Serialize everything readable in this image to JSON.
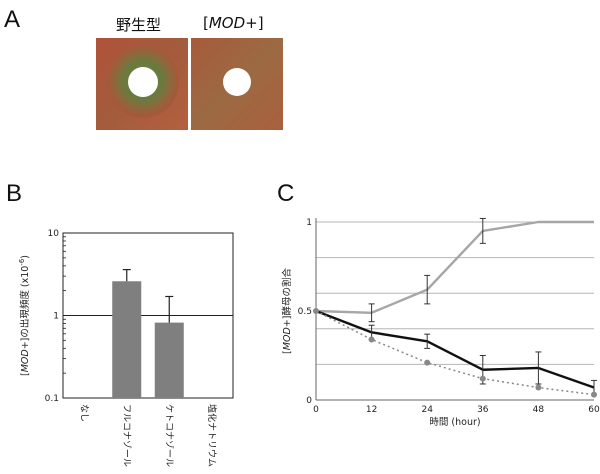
{
  "panel_a": {
    "letter": "A",
    "plates": [
      {
        "label": "野生型",
        "halo": true
      },
      {
        "label_pre": "[",
        "label_italic": "MOD",
        "label_post": "+]",
        "halo": false
      }
    ],
    "colors": {
      "agar": "#a8573a",
      "halo": "#6f7a3e",
      "disk": "#ffffff"
    }
  },
  "chart_data": [
    {
      "panel": "B",
      "type": "bar",
      "ylabel_italic": "MOD",
      "ylabel_rest": "+]の出現頻度 (x10",
      "ylabel_sup": "-6",
      "ylabel_pre": "[",
      "ylabel_end": ")",
      "yscale": "log",
      "ylim": [
        0.1,
        10
      ],
      "yticks": [
        "0.1",
        "1",
        "10"
      ],
      "categories": [
        "なし",
        "フルコナゾール",
        "ケトコナゾール",
        "塩化ナトリウム"
      ],
      "values": [
        null,
        2.6,
        0.82,
        null
      ],
      "err_upper": [
        null,
        3.6,
        1.7,
        null
      ],
      "reference_line": 1,
      "bar_color": "#7f7f7f"
    },
    {
      "panel": "C",
      "type": "line",
      "xlabel": "時間 (hour)",
      "ylabel_pre": "[",
      "ylabel_italic": "MOD",
      "ylabel_rest": "+]酵母の割合",
      "xlim": [
        0,
        60
      ],
      "ylim": [
        0,
        1
      ],
      "xticks": [
        "0",
        "12",
        "24",
        "36",
        "48",
        "60"
      ],
      "yticks": [
        "0",
        "0.5",
        "1"
      ],
      "grid": true,
      "x": [
        0,
        12,
        24,
        36,
        48,
        60
      ],
      "series": [
        {
          "color": "#a6a6a6",
          "style": "solid",
          "values": [
            0.5,
            0.49,
            0.62,
            0.95,
            1.0,
            1.0
          ],
          "err_upper": [
            null,
            0.54,
            0.7,
            1.02,
            null,
            null
          ],
          "err_lower": [
            null,
            0.44,
            0.54,
            0.88,
            null,
            null
          ]
        },
        {
          "color": "#111111",
          "style": "solid",
          "values": [
            0.5,
            0.38,
            0.33,
            0.17,
            0.18,
            0.07
          ],
          "err_upper": [
            null,
            0.42,
            0.37,
            0.25,
            0.27,
            0.11
          ],
          "err_lower": [
            null,
            0.34,
            0.29,
            0.09,
            0.09,
            0.03
          ]
        },
        {
          "color": "#888888",
          "style": "dotted",
          "markers": true,
          "values": [
            0.5,
            0.34,
            0.21,
            0.12,
            0.07,
            0.03
          ]
        }
      ]
    }
  ],
  "letters": {
    "b": "B",
    "c": "C"
  }
}
